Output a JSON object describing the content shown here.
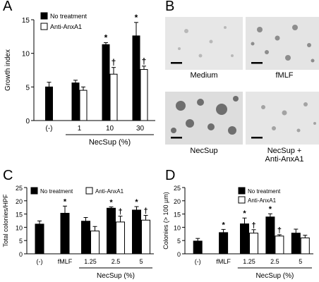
{
  "panels": {
    "A": {
      "letter": "A"
    },
    "B": {
      "letter": "B"
    },
    "C": {
      "letter": "C"
    },
    "D": {
      "letter": "D"
    }
  },
  "chart_data": [
    {
      "panel": "A",
      "type": "bar",
      "ylabel": "Growth index",
      "ylim": [
        0,
        15
      ],
      "yticks": [
        0,
        5,
        10,
        15
      ],
      "categories": [
        "(-)",
        "1",
        "10",
        "30"
      ],
      "group_label": "NecSup (%)",
      "legend": [
        "No treatment",
        "Anti-AnxA1"
      ],
      "series": [
        {
          "name": "No treatment",
          "color": "#000000",
          "values": [
            5.0,
            5.6,
            11.3,
            12.6
          ],
          "errors": [
            0.7,
            0.4,
            0.3,
            2.0
          ],
          "marks": [
            "",
            "",
            "*",
            "*"
          ]
        },
        {
          "name": "Anti-AnxA1",
          "color": "#ffffff",
          "values": [
            null,
            4.5,
            6.9,
            7.6
          ],
          "errors": [
            null,
            0.5,
            1.0,
            0.5
          ],
          "marks": [
            "",
            "",
            "†",
            "†"
          ]
        }
      ]
    },
    {
      "panel": "C",
      "type": "bar",
      "ylabel": "Total colonies/HPF",
      "ylim": [
        0,
        25
      ],
      "yticks": [
        0,
        5,
        10,
        15,
        20,
        25
      ],
      "categories": [
        "(-)",
        "fMLF",
        "1.25",
        "2.5",
        "5"
      ],
      "group_label": "NecSup (%)",
      "legend": [
        "No treatment",
        "Anti-AnxA1"
      ],
      "series": [
        {
          "name": "No treatment",
          "color": "#000000",
          "values": [
            11.2,
            15.3,
            12.3,
            17.2,
            16.5
          ],
          "errors": [
            1.2,
            2.7,
            1.4,
            0.5,
            1.3
          ],
          "marks": [
            "",
            "*",
            "",
            "*",
            "*"
          ]
        },
        {
          "name": "Anti-AnxA1",
          "color": "#ffffff",
          "values": [
            null,
            null,
            8.6,
            12.0,
            12.7
          ],
          "errors": [
            null,
            null,
            1.7,
            2.2,
            1.8
          ],
          "marks": [
            "",
            "",
            "",
            "†",
            "†"
          ]
        }
      ]
    },
    {
      "panel": "D",
      "type": "bar",
      "ylabel": "Colonies (> 100 µm)",
      "ylim": [
        0,
        25
      ],
      "yticks": [
        0,
        5,
        10,
        15,
        20,
        25
      ],
      "categories": [
        "(-)",
        "fMLF",
        "1.25",
        "2.5",
        "5"
      ],
      "group_label": "NecSup (%)",
      "legend": [
        "No treatment",
        "Anti-AnxA1"
      ],
      "series": [
        {
          "name": "No treatment",
          "color": "#000000",
          "values": [
            4.8,
            8.0,
            11.3,
            13.9,
            7.8
          ],
          "errors": [
            1.0,
            1.2,
            2.2,
            1.2,
            1.5
          ],
          "marks": [
            "",
            "*",
            "*",
            "*",
            ""
          ]
        },
        {
          "name": "Anti-AnxA1",
          "color": "#ffffff",
          "values": [
            null,
            null,
            7.8,
            6.7,
            6.0
          ],
          "errors": [
            null,
            null,
            1.3,
            0.5,
            1.0
          ],
          "marks": [
            "",
            "",
            "†",
            "†",
            ""
          ]
        }
      ]
    }
  ],
  "micrographs": [
    {
      "label": "Medium"
    },
    {
      "label": "fMLF"
    },
    {
      "label": "NecSup"
    },
    {
      "label": "NecSup +\nAnti-AnxA1"
    }
  ]
}
